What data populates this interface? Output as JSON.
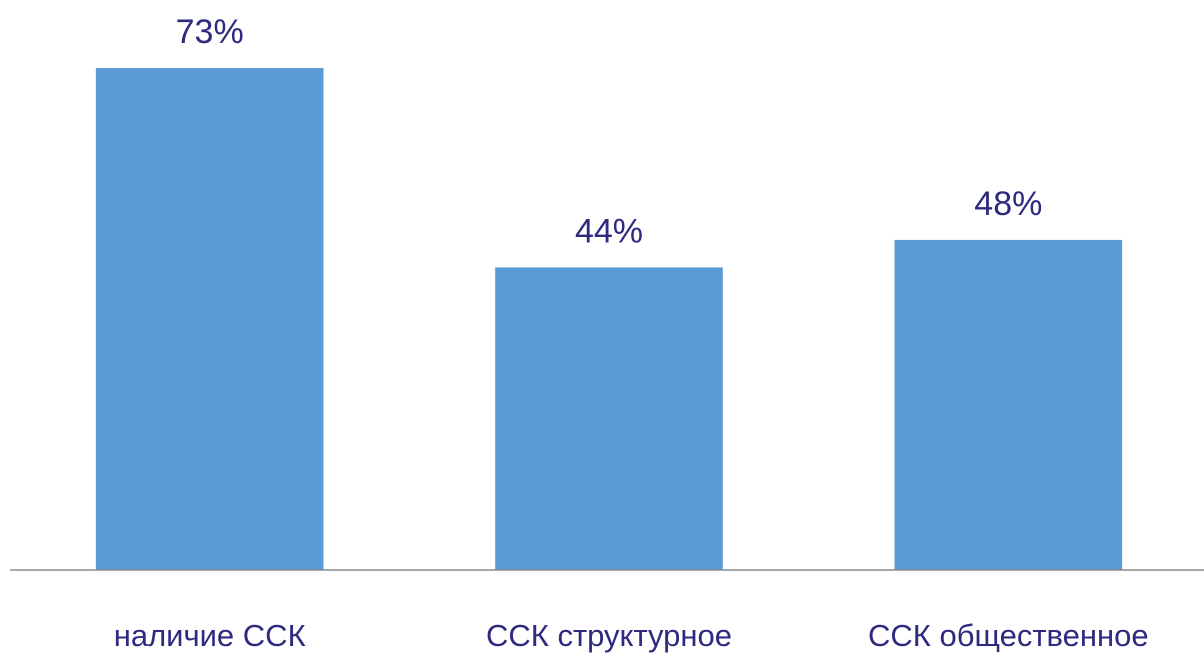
{
  "chart_data": {
    "type": "bar",
    "categories": [
      "наличие ССК",
      "ССК структурное",
      "ССК общественное"
    ],
    "values": [
      73,
      44,
      48
    ],
    "value_labels": [
      "73%",
      "44%",
      "48%"
    ],
    "color": "#5b9bd5"
  }
}
